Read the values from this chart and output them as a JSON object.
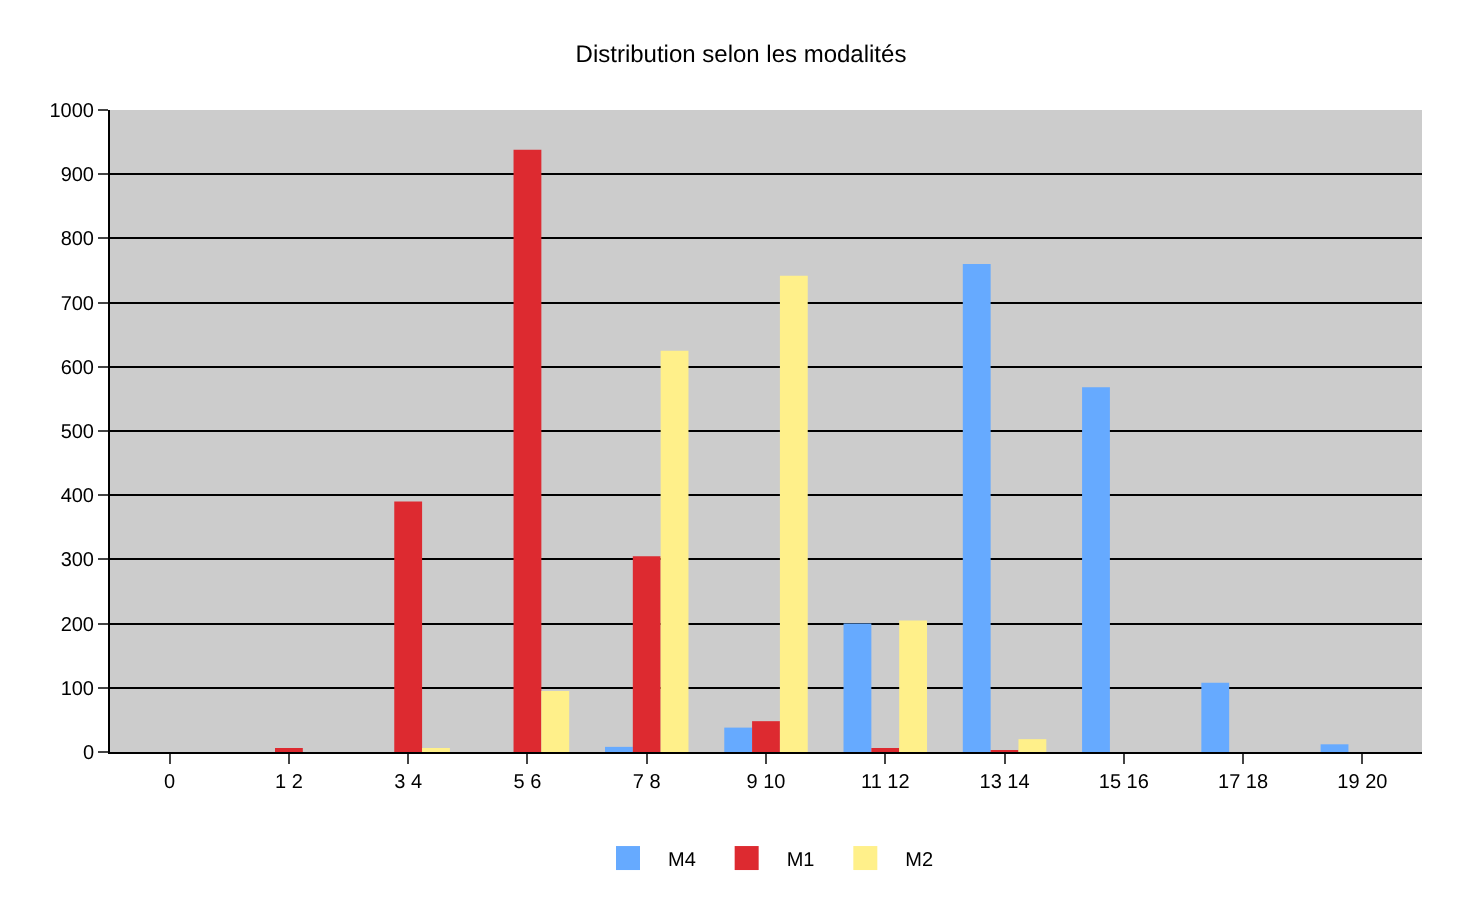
{
  "chart_data": {
    "type": "bar",
    "title": "Distribution selon les modalités",
    "categories": [
      "0",
      "1 2",
      "3 4",
      "5 6",
      "7 8",
      "9 10",
      "11 12",
      "13 14",
      "15 16",
      "17 18",
      "19 20"
    ],
    "series": [
      {
        "name": "M4",
        "color": "#66aaff",
        "values": [
          0,
          0,
          0,
          0,
          8,
          38,
          200,
          760,
          568,
          108,
          12
        ]
      },
      {
        "name": "M1",
        "color": "#dd2a30",
        "values": [
          0,
          6,
          390,
          938,
          305,
          48,
          6,
          2,
          0,
          0,
          0
        ]
      },
      {
        "name": "M2",
        "color": "#fff08a",
        "values": [
          0,
          0,
          4,
          95,
          625,
          742,
          205,
          20,
          0,
          0,
          0
        ]
      }
    ],
    "ylim": [
      0,
      1000
    ],
    "yticks": [
      0,
      100,
      200,
      300,
      400,
      500,
      600,
      700,
      800,
      900,
      1000
    ],
    "grid": "y",
    "legend": "bottom"
  }
}
